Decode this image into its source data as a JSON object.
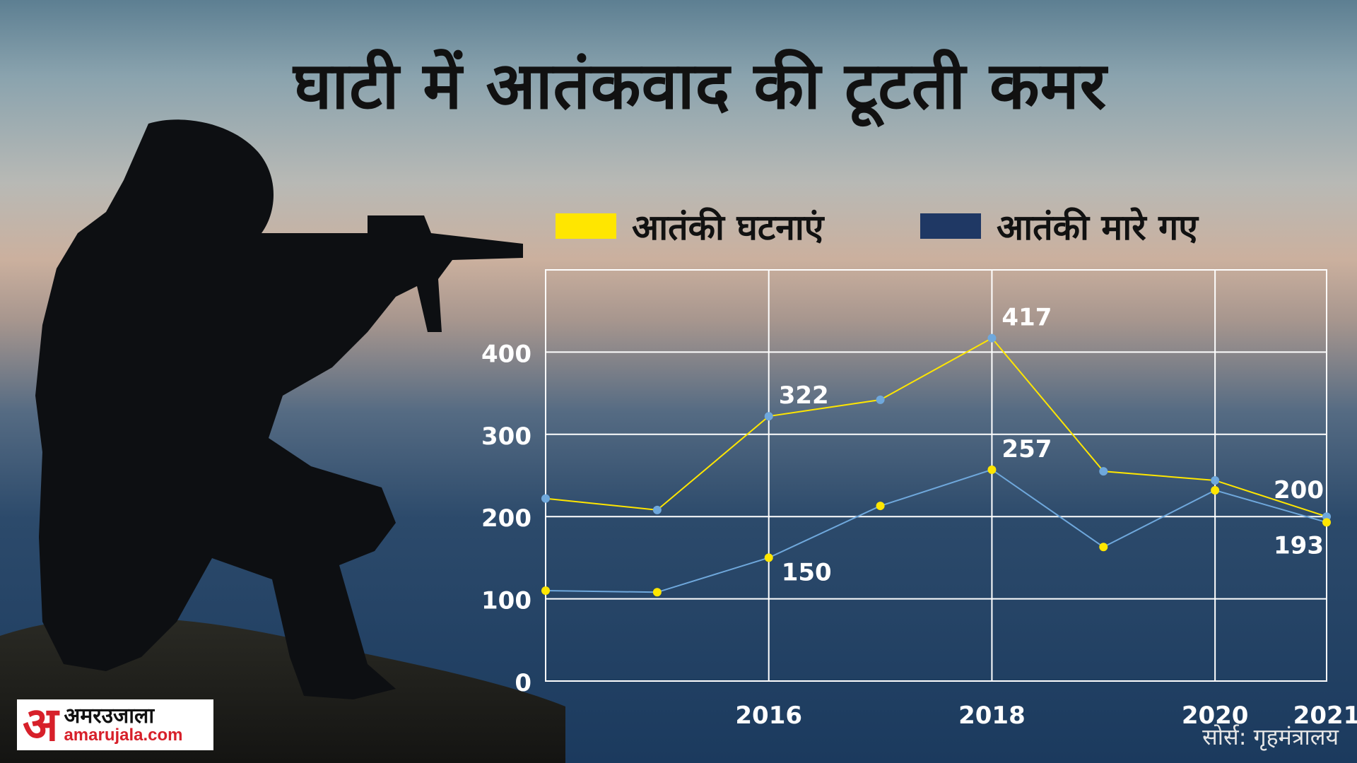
{
  "title": "घाटी में आतंकवाद की टूटती कमर",
  "legend": [
    {
      "label": "आतंकी घटनाएं",
      "color": "#ffe600"
    },
    {
      "label": "आतंकी मारे गए",
      "color": "#1f3864"
    }
  ],
  "source": "सोर्स: गृहमंत्रालय",
  "logo": {
    "mark": "अ",
    "name": "अमरउजाला",
    "url": "amarujala.com"
  },
  "chart_data": {
    "type": "line",
    "x": [
      2014,
      2015,
      2016,
      2017,
      2018,
      2019,
      2020,
      2021
    ],
    "x_tick_labels": [
      "2016",
      "2018",
      "2020",
      "2021"
    ],
    "x_tick_values": [
      2016,
      2018,
      2020,
      2021
    ],
    "ylim": [
      0,
      500
    ],
    "y_ticks": [
      0,
      100,
      200,
      300,
      400
    ],
    "grid": true,
    "series": [
      {
        "name": "आतंकी घटनाएं",
        "color": "#ffe600",
        "values": [
          222,
          208,
          322,
          342,
          417,
          255,
          244,
          200
        ]
      },
      {
        "name": "आतंकी मारे गए",
        "color": "#6fa8dc",
        "values": [
          110,
          108,
          150,
          213,
          257,
          163,
          232,
          193
        ]
      }
    ],
    "data_labels": [
      {
        "x": 2016,
        "value": 322,
        "text": "322",
        "pos": "above-right"
      },
      {
        "x": 2018,
        "value": 417,
        "text": "417",
        "pos": "above-right"
      },
      {
        "x": 2016,
        "value": 150,
        "text": "150",
        "pos": "below-right"
      },
      {
        "x": 2018,
        "value": 257,
        "text": "257",
        "pos": "above-right"
      },
      {
        "x": 2021,
        "value": 200,
        "text": "200",
        "pos": "above-left"
      },
      {
        "x": 2021,
        "value": 193,
        "text": "193",
        "pos": "below-left"
      }
    ]
  }
}
